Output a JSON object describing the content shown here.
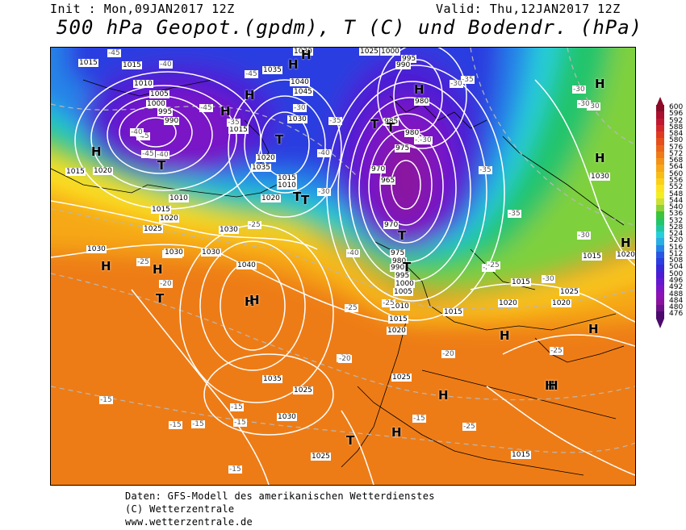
{
  "header": {
    "init": "Init : Mon,09JAN2017 12Z",
    "valid": "Valid: Thu,12JAN2017 12Z",
    "title": "500 hPa Geopot.(gpdm), T (C) und Bodendr. (hPa)"
  },
  "footer": {
    "line1": "Daten: GFS-Modell des amerikanischen Wetterdienstes",
    "line2": "(C) Wetterzentrale",
    "line3": "www.wetterzentrale.de"
  },
  "legend": {
    "values": [
      "600",
      "596",
      "592",
      "588",
      "584",
      "580",
      "576",
      "572",
      "568",
      "564",
      "560",
      "556",
      "552",
      "548",
      "544",
      "540",
      "536",
      "532",
      "528",
      "524",
      "520",
      "516",
      "512",
      "508",
      "504",
      "500",
      "496",
      "492",
      "488",
      "484",
      "480",
      "476"
    ],
    "colors": [
      "#8b0a25",
      "#a8102e",
      "#c01830",
      "#d2282a",
      "#de3a22",
      "#e44f1c",
      "#ea651a",
      "#ee7b18",
      "#f29218",
      "#f6a818",
      "#f8bc18",
      "#fad018",
      "#fde222",
      "#f4ee20",
      "#cde03a",
      "#8cd23a",
      "#3cc43a",
      "#22c46c",
      "#20c6a4",
      "#26cfd8",
      "#2aaee4",
      "#2684e8",
      "#2858e2",
      "#2c3ee0",
      "#3828d8",
      "#4c1cd4",
      "#6418d0",
      "#7a14c6",
      "#8c12b6",
      "#8a14a0",
      "#6c1288",
      "#4c0a6c"
    ]
  },
  "pressure_labels": [
    "1015",
    "1015",
    "1010",
    "1005",
    "1000",
    "995",
    "990",
    "1015",
    "1020",
    "1015",
    "1010",
    "1015",
    "1020",
    "1025",
    "1030",
    "1025",
    "1030",
    "1035",
    "1040",
    "1045",
    "1030",
    "1020",
    "1015",
    "1010",
    "1035",
    "1040",
    "1030",
    "1025",
    "1020",
    "1035",
    "1030",
    "1025",
    "1000",
    "995",
    "990",
    "980",
    "985",
    "980",
    "975",
    "970",
    "965",
    "970",
    "975",
    "980",
    "990",
    "995",
    "1000",
    "1005",
    "1010",
    "1015",
    "1020",
    "1015",
    "1020",
    "1025",
    "1015",
    "1025",
    "1030",
    "1015",
    "1020",
    "1020",
    "1015",
    "1025",
    "1030",
    "1030"
  ],
  "temperature_labels": [
    "-45",
    "-40",
    "-45",
    "-45",
    "-45",
    "-40",
    "-40",
    "-45",
    "-35",
    "-40",
    "-35",
    "-30",
    "-35",
    "-35",
    "-30",
    "-30",
    "-30",
    "-35",
    "-35",
    "-30",
    "-30",
    "-25",
    "-25",
    "-25",
    "-20",
    "-25",
    "-30",
    "-30",
    "-25",
    "-20",
    "-15",
    "-15",
    "-15",
    "-15",
    "-15",
    "-15",
    "-20",
    "-25",
    "-20",
    "-15",
    "-25",
    "-25",
    "-40",
    "-30"
  ],
  "centers": [
    "H",
    "H",
    "T",
    "H",
    "H",
    "T",
    "H",
    "H",
    "T",
    "T",
    "H",
    "H",
    "T",
    "T",
    "T",
    "H",
    "H",
    "H",
    "T",
    "H",
    "H",
    "H",
    "H",
    "H",
    "H",
    "H",
    "T",
    "H",
    "T"
  ]
}
